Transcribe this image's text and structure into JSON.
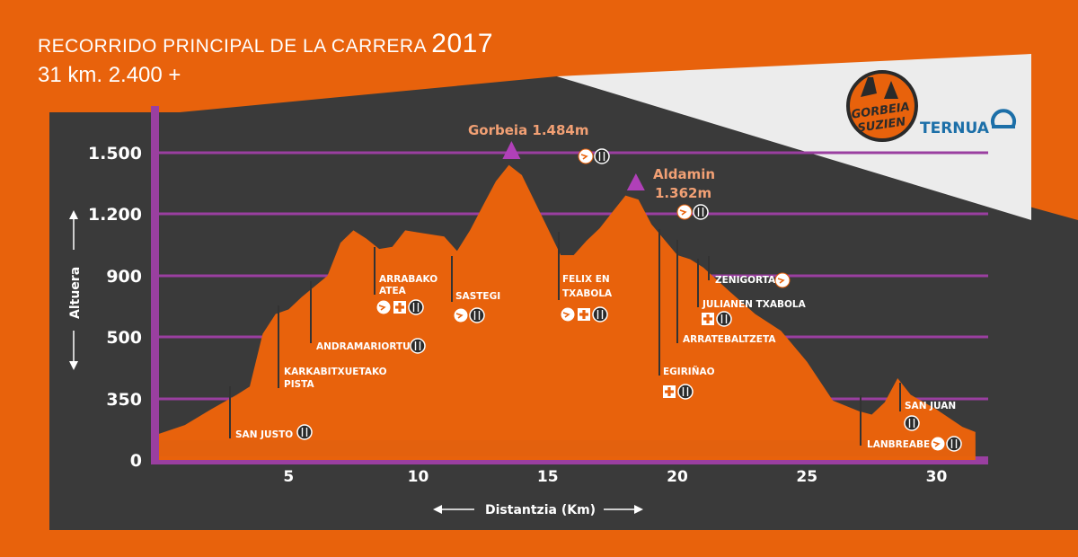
{
  "header": {
    "title": "RECORRIDO PRINCIPAL DE LA CARRERA",
    "year": "2017",
    "subtitle": "31 km. 2.400 +"
  },
  "logos": {
    "race_line1": "GORBEIA",
    "race_line2": "SUZIEN",
    "sponsor": "TERNUA"
  },
  "chart_data": {
    "type": "area",
    "xlabel": "Distantzia (Km)",
    "ylabel": "Altuera",
    "xlim": [
      0,
      32
    ],
    "x_ticks": [
      5,
      10,
      15,
      20,
      25,
      30
    ],
    "x_tick_labels": [
      "5",
      "10",
      "15",
      "20",
      "25",
      "30"
    ],
    "y_ticks": [
      0,
      350,
      500,
      900,
      1200,
      1500
    ],
    "y_tick_labels": [
      "0",
      "350",
      "500",
      "900",
      "1.200",
      "1.500"
    ],
    "grid": true,
    "profile": [
      [
        0.0,
        150
      ],
      [
        1.0,
        200
      ],
      [
        2.0,
        290
      ],
      [
        3.0,
        360
      ],
      [
        3.5,
        380
      ],
      [
        4.0,
        520
      ],
      [
        4.5,
        650
      ],
      [
        5.0,
        680
      ],
      [
        5.5,
        760
      ],
      [
        6.5,
        900
      ],
      [
        7.0,
        1060
      ],
      [
        7.5,
        1120
      ],
      [
        8.0,
        1080
      ],
      [
        8.5,
        1030
      ],
      [
        9.0,
        1040
      ],
      [
        9.5,
        1120
      ],
      [
        10.0,
        1110
      ],
      [
        11.0,
        1090
      ],
      [
        11.5,
        1020
      ],
      [
        12.0,
        1120
      ],
      [
        12.5,
        1240
      ],
      [
        13.0,
        1360
      ],
      [
        13.5,
        1440
      ],
      [
        14.0,
        1390
      ],
      [
        14.5,
        1260
      ],
      [
        15.0,
        1130
      ],
      [
        15.5,
        1000
      ],
      [
        16.0,
        1000
      ],
      [
        16.5,
        1070
      ],
      [
        17.0,
        1130
      ],
      [
        17.5,
        1210
      ],
      [
        18.0,
        1290
      ],
      [
        18.5,
        1270
      ],
      [
        19.0,
        1150
      ],
      [
        20.0,
        1000
      ],
      [
        20.5,
        980
      ],
      [
        21.0,
        940
      ],
      [
        22.0,
        800
      ],
      [
        23.0,
        650
      ],
      [
        24.0,
        540
      ],
      [
        25.0,
        440
      ],
      [
        26.0,
        340
      ],
      [
        27.0,
        280
      ],
      [
        27.5,
        260
      ],
      [
        28.0,
        330
      ],
      [
        28.5,
        400
      ],
      [
        29.0,
        360
      ],
      [
        30.0,
        290
      ],
      [
        31.0,
        190
      ],
      [
        31.5,
        160
      ]
    ],
    "peaks": [
      {
        "label": "Gorbeia 1.484m",
        "x": 13.6,
        "y": 1484
      },
      {
        "label_line1": "Aldamin",
        "label_line2": "1.362m",
        "x": 18.4,
        "y": 1362
      }
    ],
    "waypoints": [
      {
        "label": "SAN JUSTO",
        "x": 2.8,
        "icons": [
          "fork-knife"
        ]
      },
      {
        "label": "KARKABITXUETAKO",
        "label2": "PISTA",
        "x": 4.7,
        "icons": []
      },
      {
        "label": "ANDRAMARIORTU",
        "x": 5.9,
        "icons": [
          "fork-knife"
        ]
      },
      {
        "label": "ARRABAKO",
        "label2": "ATEA",
        "x": 8.2,
        "icons": [
          "clock",
          "first-aid",
          "fork-knife"
        ]
      },
      {
        "label": "SASTEGI",
        "x": 11.1,
        "icons": [
          "clock",
          "fork-knife"
        ]
      },
      {
        "label": "FELIX EN",
        "label2": "TXABOLA",
        "x": 15.2,
        "icons": [
          "clock",
          "first-aid",
          "fork-knife"
        ]
      },
      {
        "label": "EGIRIÑAO",
        "x": 19.1,
        "icons": [
          "first-aid",
          "fork-knife"
        ]
      },
      {
        "label": "ARRATEBALTZETA",
        "x": 20.0,
        "icons": []
      },
      {
        "label": "JULIANEN TXABOLA",
        "x": 20.7,
        "icons": [
          "first-aid",
          "fork-knife"
        ]
      },
      {
        "label": "ZENIGORTA",
        "x": 21.1,
        "icons": [
          "clock"
        ]
      },
      {
        "label": "SAN JUAN",
        "x": 28.4,
        "icons": [
          "fork-knife"
        ]
      },
      {
        "label": "LANBREABE",
        "x": 26.9,
        "icons": [
          "clock",
          "fork-knife"
        ]
      }
    ],
    "floating_icons": [
      {
        "near": "Gorbeia",
        "icons": [
          "clock",
          "fork-knife"
        ]
      },
      {
        "near": "Aldamin",
        "icons": [
          "clock",
          "fork-knife"
        ]
      }
    ]
  },
  "colors": {
    "background": "#e8620c",
    "panel": "#3a3a3a",
    "profile_fill": "#e8620c",
    "grid": "#9a3fa0",
    "peak_marker": "#b040b8"
  }
}
